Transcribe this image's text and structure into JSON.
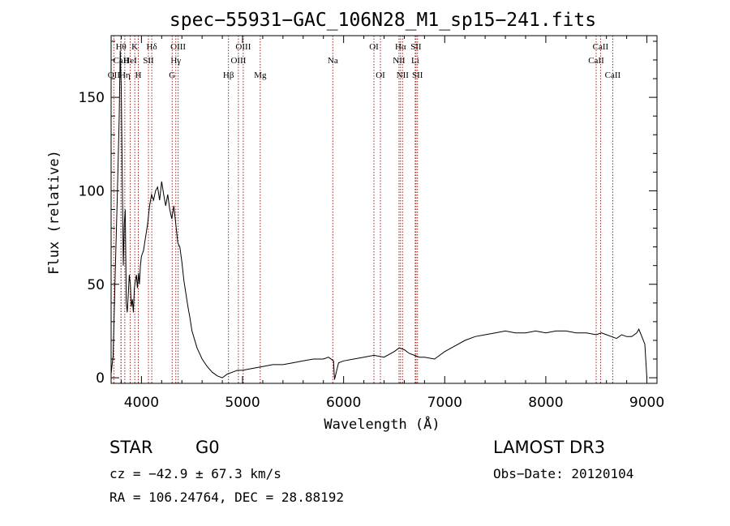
{
  "chart_data": {
    "type": "line",
    "title": "spec−55931−GAC_106N28_M1_sp15−241.fits",
    "xlabel": "Wavelength (Å)",
    "ylabel": "Flux (relative)",
    "xlim": [
      3700,
      9100
    ],
    "ylim": [
      -3,
      183
    ],
    "xticks": [
      4000,
      5000,
      6000,
      7000,
      8000,
      9000
    ],
    "yticks": [
      0,
      50,
      100,
      150
    ],
    "grid": false,
    "series": [
      {
        "name": "spectrum",
        "x": [
          3700,
          3720,
          3740,
          3760,
          3780,
          3790,
          3800,
          3810,
          3820,
          3830,
          3840,
          3850,
          3860,
          3870,
          3880,
          3890,
          3900,
          3910,
          3920,
          3930,
          3940,
          3950,
          3960,
          3970,
          3980,
          3990,
          4000,
          4020,
          4040,
          4060,
          4080,
          4100,
          4120,
          4140,
          4160,
          4180,
          4200,
          4220,
          4240,
          4260,
          4280,
          4300,
          4320,
          4340,
          4360,
          4380,
          4400,
          4420,
          4440,
          4460,
          4480,
          4500,
          4550,
          4600,
          4650,
          4700,
          4750,
          4800,
          4850,
          4900,
          4950,
          5000,
          5100,
          5200,
          5300,
          5400,
          5500,
          5600,
          5700,
          5800,
          5850,
          5900,
          5910,
          5950,
          6000,
          6100,
          6200,
          6300,
          6400,
          6500,
          6550,
          6600,
          6650,
          6700,
          6750,
          6800,
          6900,
          6950,
          7000,
          7100,
          7200,
          7300,
          7400,
          7500,
          7600,
          7700,
          7800,
          7900,
          8000,
          8100,
          8200,
          8300,
          8400,
          8500,
          8550,
          8600,
          8650,
          8700,
          8750,
          8800,
          8850,
          8900,
          8920,
          8950,
          8980,
          9000
        ],
        "values": [
          2,
          12,
          55,
          95,
          140,
          175,
          155,
          110,
          60,
          82,
          90,
          40,
          35,
          45,
          55,
          50,
          38,
          42,
          35,
          48,
          52,
          55,
          48,
          56,
          50,
          60,
          65,
          68,
          75,
          82,
          92,
          98,
          95,
          100,
          102,
          95,
          105,
          98,
          92,
          98,
          90,
          85,
          92,
          82,
          72,
          70,
          62,
          52,
          45,
          38,
          32,
          25,
          16,
          10,
          6,
          3,
          1,
          0,
          2,
          3,
          4,
          4,
          5,
          6,
          7,
          7,
          8,
          9,
          10,
          10,
          11,
          9,
          -1,
          8,
          9,
          10,
          11,
          12,
          11,
          14,
          16,
          15,
          13,
          12,
          11,
          11,
          10,
          12,
          14,
          17,
          20,
          22,
          23,
          24,
          25,
          24,
          24,
          25,
          24,
          25,
          25,
          24,
          24,
          23,
          24,
          23,
          22,
          21,
          23,
          22,
          22,
          24,
          26,
          22,
          18,
          0
        ]
      }
    ],
    "lines": [
      {
        "name": "OII",
        "x": 3727,
        "row": 3
      },
      {
        "name": "Hθ",
        "x": 3798,
        "row": 1
      },
      {
        "name": "CaII",
        "x": 3798,
        "row": 2
      },
      {
        "name": "Hη",
        "x": 3835,
        "row": 3
      },
      {
        "name": "K",
        "x": 3934,
        "row": 1
      },
      {
        "name": "HeI",
        "x": 3889,
        "row": 2
      },
      {
        "name": "H",
        "x": 3969,
        "row": 3
      },
      {
        "name": "Hδ",
        "x": 4102,
        "row": 1
      },
      {
        "name": "SII",
        "x": 4069,
        "row": 2
      },
      {
        "name": "OIII",
        "x": 4363,
        "row": 1
      },
      {
        "name": "Hγ",
        "x": 4340,
        "row": 2
      },
      {
        "name": "G",
        "x": 4304,
        "row": 3
      },
      {
        "name": "Hβ",
        "x": 4861,
        "row": 3
      },
      {
        "name": "OIII",
        "x": 5007,
        "row": 1
      },
      {
        "name": "OIII",
        "x": 4959,
        "row": 2
      },
      {
        "name": "Mg",
        "x": 5175,
        "row": 3
      },
      {
        "name": "Na",
        "x": 5893,
        "row": 2
      },
      {
        "name": "OI",
        "x": 6300,
        "row": 1
      },
      {
        "name": "OI",
        "x": 6364,
        "row": 3
      },
      {
        "name": "Hα",
        "x": 6563,
        "row": 1
      },
      {
        "name": "NII",
        "x": 6548,
        "row": 2
      },
      {
        "name": "NII",
        "x": 6583,
        "row": 3
      },
      {
        "name": "SII",
        "x": 6716,
        "row": 1
      },
      {
        "name": "Li",
        "x": 6708,
        "row": 2
      },
      {
        "name": "SII",
        "x": 6731,
        "row": 3
      },
      {
        "name": "CaII",
        "x": 8542,
        "row": 1
      },
      {
        "name": "CaII",
        "x": 8498,
        "row": 2
      },
      {
        "name": "CaII",
        "x": 8662,
        "row": 3
      }
    ],
    "line_color": "#9b2020"
  },
  "info": {
    "object_class": "STAR",
    "subclass": "G0",
    "survey": "LAMOST DR3",
    "cz": "cz = −42.9 ± 67.3 km/s",
    "obs_date": "Obs−Date: 20120104",
    "coords": "RA = 106.24764, DEC =  28.88192"
  }
}
